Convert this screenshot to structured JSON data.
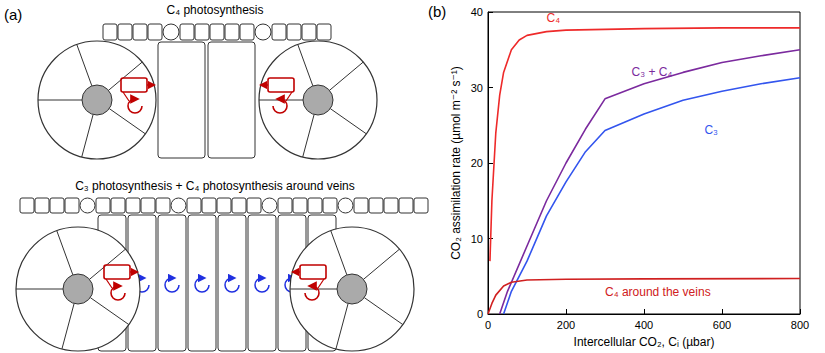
{
  "diagram": {
    "label": "(a)",
    "panels": [
      {
        "title": "C₄ photosynthesis"
      },
      {
        "title": "C₃ photosynthesis + C₄ photosynthesis around veins"
      }
    ]
  },
  "chart_data": {
    "type": "line",
    "annotations": [
      {
        "text": "(b)"
      }
    ],
    "x_label": "Intercellular CO₂, Cᵢ (µbar)",
    "y_label": "CO₂ assimilation rate (µmol m⁻² s⁻¹)",
    "xlim": [
      0,
      800
    ],
    "xticks": [
      0,
      200,
      400,
      600,
      800
    ],
    "ylim": [
      0,
      40
    ],
    "yticks": [
      0,
      10,
      20,
      30,
      40
    ],
    "grid": false,
    "series": [
      {
        "name": "C₄",
        "color": "#ee2a2a",
        "line_style": "solid",
        "x": [
          5,
          10,
          20,
          30,
          40,
          60,
          80,
          100,
          150,
          200,
          300,
          400,
          600,
          800
        ],
        "values": [
          7,
          15,
          24,
          29,
          32,
          35,
          36.3,
          36.9,
          37.4,
          37.6,
          37.7,
          37.8,
          37.9,
          37.9
        ]
      },
      {
        "name": "C₃ + C₄",
        "color": "#7b2a9e",
        "line_style": "solid",
        "x": [
          30,
          50,
          100,
          150,
          200,
          250,
          300,
          400,
          500,
          600,
          700,
          800
        ],
        "values": [
          0,
          3,
          9,
          15,
          20,
          24.5,
          28.5,
          30.5,
          32,
          33.3,
          34.2,
          35
        ]
      },
      {
        "name": "C₃",
        "color": "#3355ee",
        "line_style": "solid",
        "x": [
          40,
          60,
          100,
          150,
          200,
          250,
          300,
          400,
          500,
          600,
          700,
          800
        ],
        "values": [
          0,
          3,
          7,
          13,
          17.5,
          21.5,
          24.3,
          26.5,
          28.3,
          29.5,
          30.5,
          31.3
        ]
      },
      {
        "name": "C₄ around the veins",
        "color": "#d02020",
        "line_style": "solid",
        "x": [
          0,
          10,
          20,
          40,
          60,
          100,
          200,
          400,
          800
        ],
        "values": [
          0,
          1.4,
          2.5,
          3.7,
          4.2,
          4.5,
          4.6,
          4.65,
          4.7
        ]
      }
    ]
  }
}
